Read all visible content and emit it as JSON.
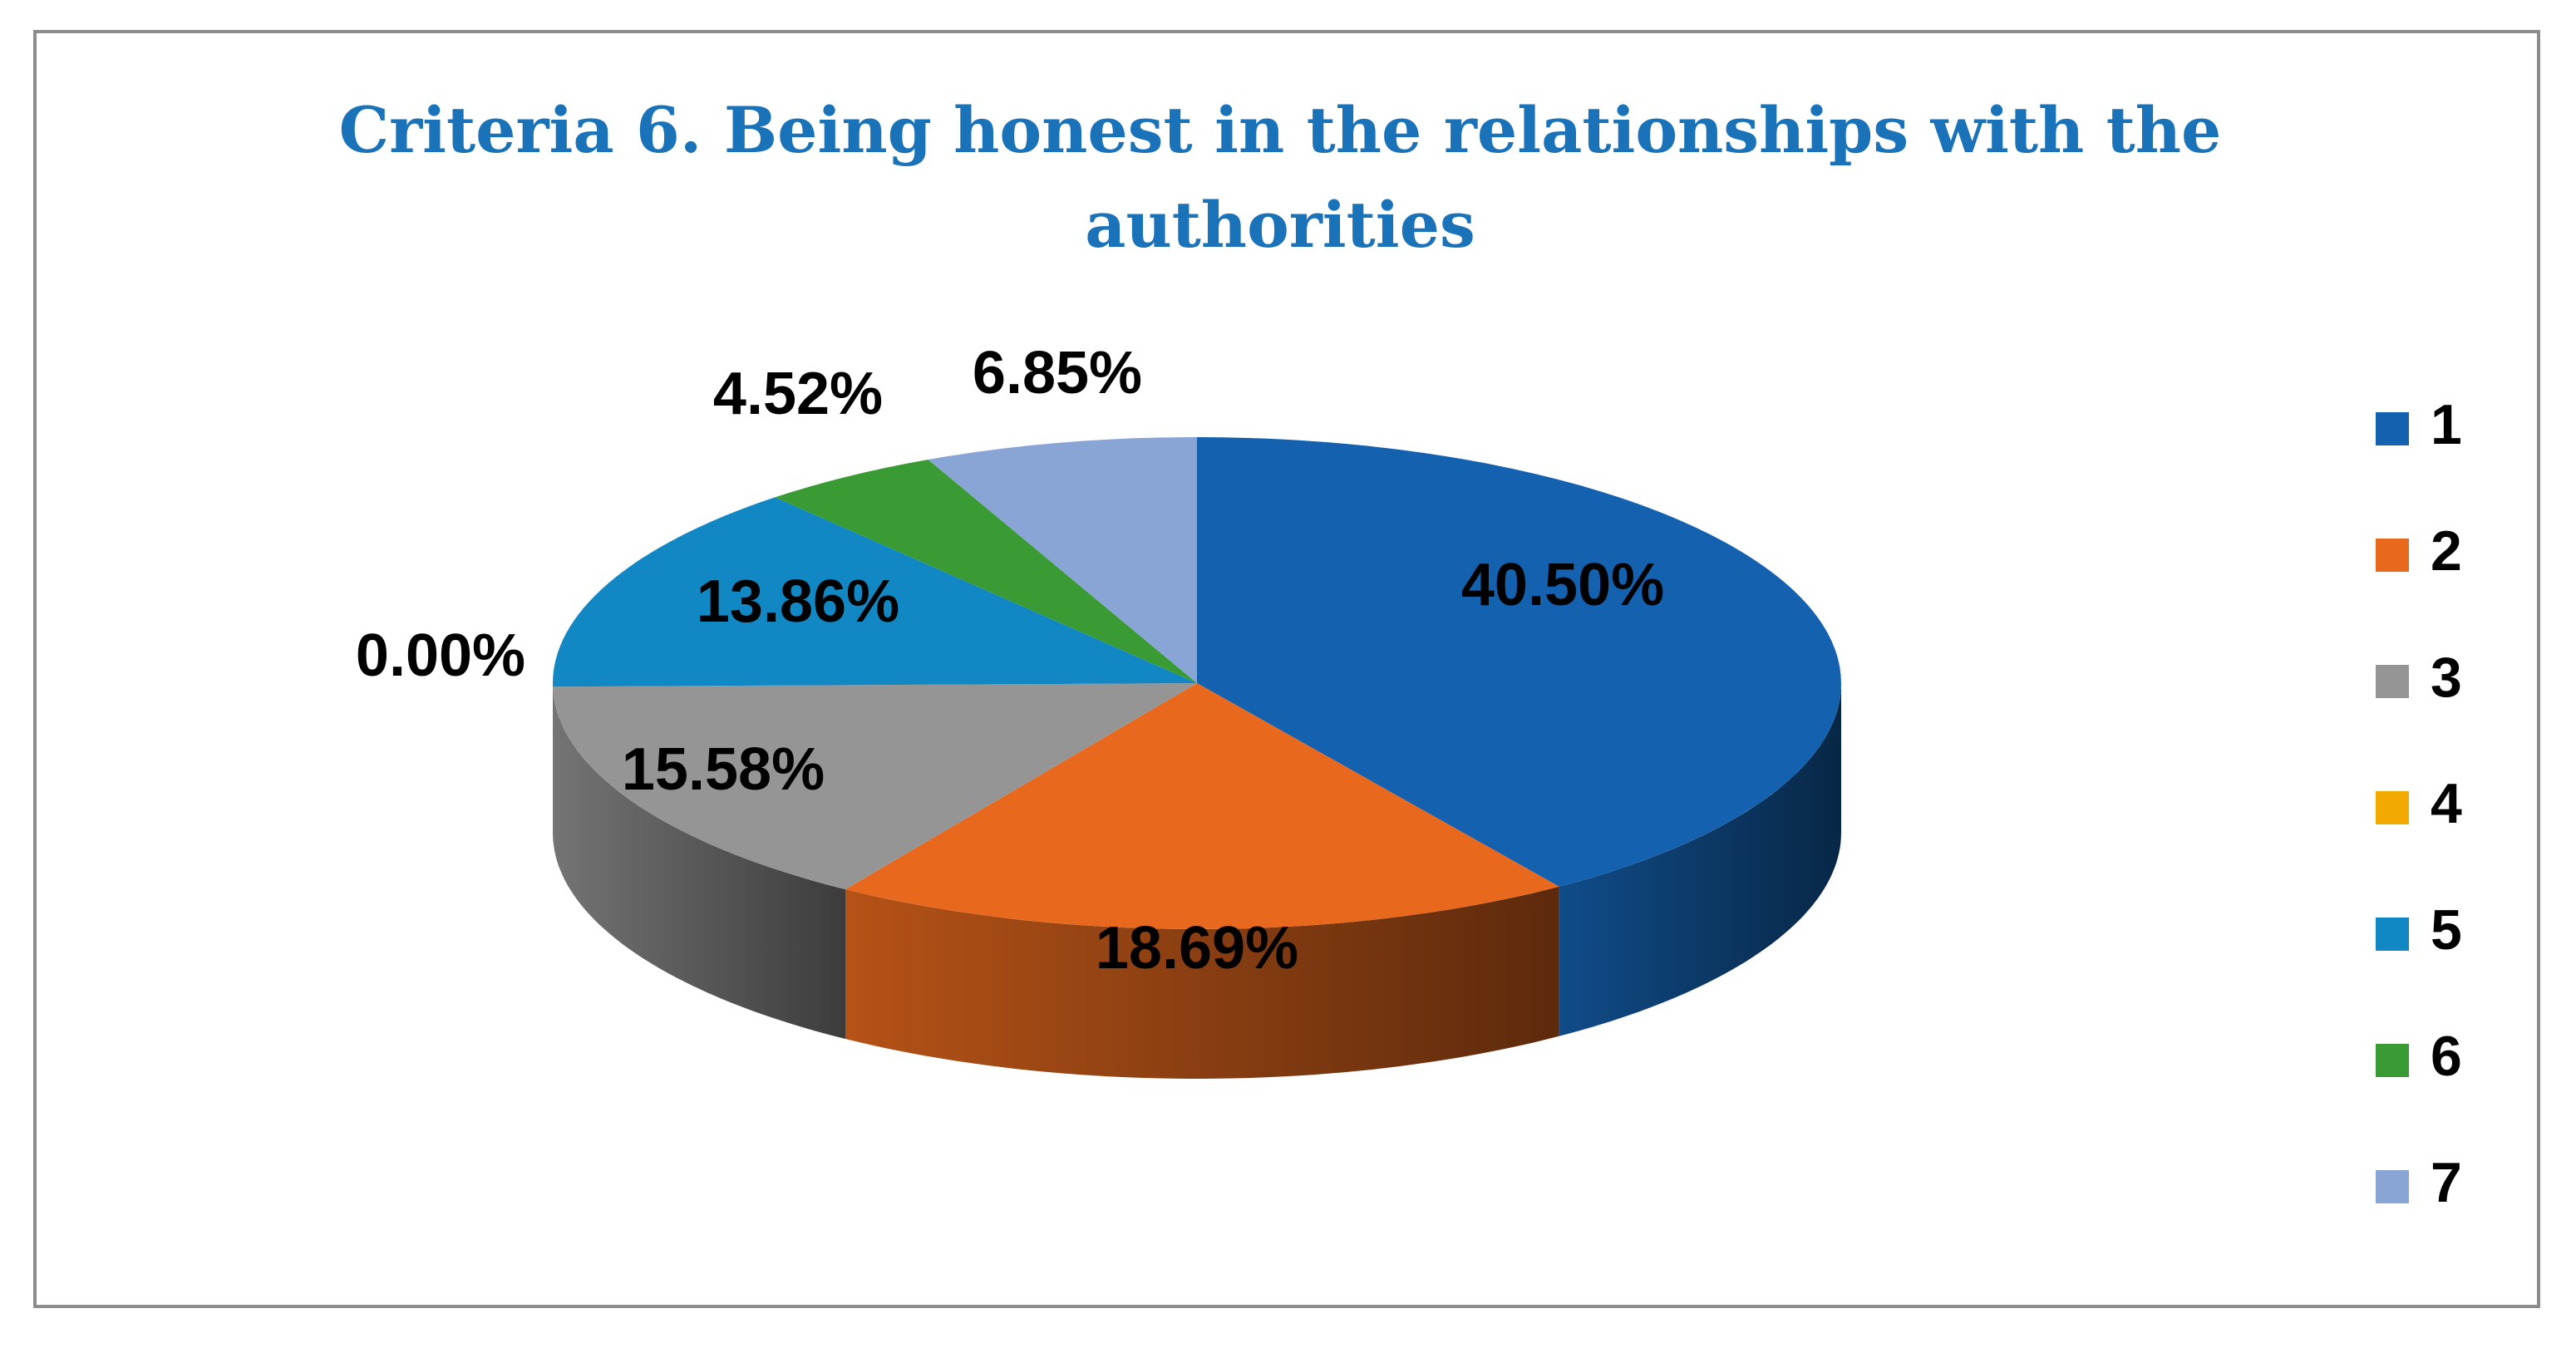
{
  "chart_data": {
    "type": "pie",
    "style": "3d",
    "title": "Criteria 6. Being honest in the relationships with the authorities",
    "categories": [
      "1",
      "2",
      "3",
      "4",
      "5",
      "6",
      "7"
    ],
    "values": [
      40.5,
      18.69,
      15.58,
      0.0,
      13.86,
      4.52,
      6.85
    ],
    "labels": [
      "40.50%",
      "18.69%",
      "15.58%",
      "0.00%",
      "13.86%",
      "4.52%",
      "6.85%"
    ],
    "colors": [
      "#1461b0",
      "#e8691e",
      "#959595",
      "#f2a900",
      "#1187c3",
      "#3a9a34",
      "#88a5d6"
    ],
    "legend_position": "right"
  }
}
